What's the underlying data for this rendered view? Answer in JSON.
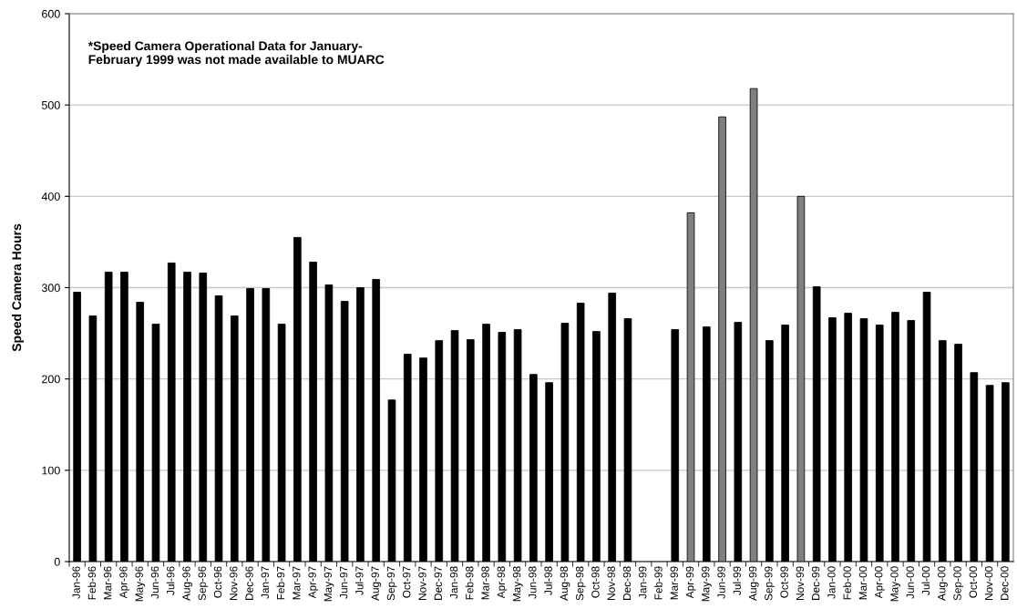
{
  "chart_data": {
    "type": "bar",
    "ylabel": "Speed Camera Hours",
    "annotations": [
      "*Speed Camera Operational Data for January-\nFebruary 1999 was not made available to MUARC"
    ],
    "categories": [
      "Jan-96",
      "Feb-96",
      "Mar-96",
      "Apr-96",
      "May-96",
      "Jun-96",
      "Jul-96",
      "Aug-96",
      "Sep-96",
      "Oct-96",
      "Nov-96",
      "Dec-96",
      "Jan-97",
      "Feb-97",
      "Mar-97",
      "Apr-97",
      "May-97",
      "Jun-97",
      "Jul-97",
      "Aug-97",
      "Sep-97",
      "Oct-97",
      "Nov-97",
      "Dec-97",
      "Jan-98",
      "Feb-98",
      "Mar-98",
      "Apr-98",
      "May-98",
      "Jun-98",
      "Jul-98",
      "Aug-98",
      "Sep-98",
      "Oct-98",
      "Nov-98",
      "Dec-98",
      "Jan-99",
      "Feb-99",
      "Mar-99",
      "Apr-99",
      "May-99",
      "Jun-99",
      "Jul-99",
      "Aug-99",
      "Sep-99",
      "Oct-99",
      "Nov-99",
      "Dec-99",
      "Jan-00",
      "Feb-00",
      "Mar-00",
      "Apr-00",
      "May-00",
      "Jun-00",
      "Jul-00",
      "Aug-00",
      "Sep-00",
      "Oct-00",
      "Nov-00",
      "Dec-00"
    ],
    "values": [
      295,
      269,
      317,
      317,
      284,
      260,
      327,
      317,
      316,
      291,
      269,
      299,
      299,
      260,
      355,
      328,
      303,
      285,
      300,
      309,
      177,
      227,
      223,
      242,
      253,
      243,
      260,
      251,
      254,
      205,
      196,
      261,
      283,
      252,
      294,
      266,
      null,
      null,
      254,
      382,
      257,
      487,
      262,
      518,
      242,
      259,
      400,
      301,
      267,
      272,
      266,
      259,
      273,
      264,
      295,
      242,
      238,
      207,
      193,
      196
    ],
    "colors": [
      "#000000",
      "#000000",
      "#000000",
      "#000000",
      "#000000",
      "#000000",
      "#000000",
      "#000000",
      "#000000",
      "#000000",
      "#000000",
      "#000000",
      "#000000",
      "#000000",
      "#000000",
      "#000000",
      "#000000",
      "#000000",
      "#000000",
      "#000000",
      "#000000",
      "#000000",
      "#000000",
      "#000000",
      "#000000",
      "#000000",
      "#000000",
      "#000000",
      "#000000",
      "#000000",
      "#000000",
      "#000000",
      "#000000",
      "#000000",
      "#000000",
      "#000000",
      "#000000",
      "#000000",
      "#000000",
      "#808080",
      "#000000",
      "#808080",
      "#000000",
      "#808080",
      "#000000",
      "#000000",
      "#808080",
      "#000000",
      "#000000",
      "#000000",
      "#000000",
      "#000000",
      "#000000",
      "#000000",
      "#000000",
      "#000000",
      "#000000",
      "#000000",
      "#000000",
      "#000000"
    ],
    "ylim": [
      0,
      600
    ],
    "yticks": [
      0,
      100,
      200,
      300,
      400,
      500,
      600
    ],
    "grid": "y"
  }
}
